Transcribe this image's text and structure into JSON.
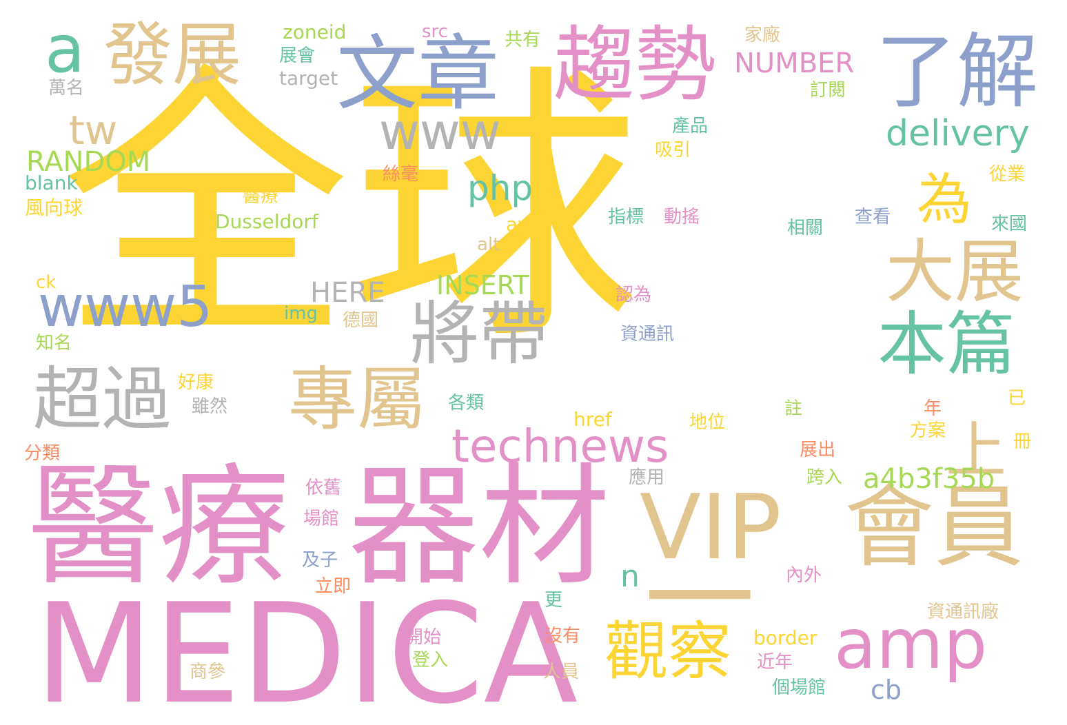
{
  "palette": {
    "yellow": "#fcd535",
    "pink": "#e390c6",
    "tan": "#e2c48e",
    "blue": "#8da0cb",
    "gray": "#b3b3b3",
    "green": "#66c2a5",
    "lime": "#a6d854",
    "orange": "#fc8d62"
  },
  "words": [
    "全球",
    "醫療",
    "器材",
    "MEDICA",
    "VIP",
    "會員",
    "一",
    "文章",
    "趨勢",
    "了解",
    "發展",
    "a",
    "將帶",
    "超過",
    "專屬",
    "大展",
    "本篇",
    "www5",
    "www",
    "觀察",
    "amp",
    "technews",
    "為",
    "上",
    "delivery",
    "php",
    "tw",
    "RANDOM",
    "blank",
    "風向球",
    "zoneid",
    "src",
    "展會",
    "target",
    "萬名",
    "共有",
    "家廠",
    "NUMBER",
    "訂閱",
    "產品",
    "吸引",
    "絲毫",
    "從業",
    "醫療",
    "Dusseldorf",
    "指標",
    "動搖",
    "查看",
    "相關",
    "來國",
    "avw",
    "alt",
    "ck",
    "HERE",
    "INSERT",
    "img",
    "德國",
    "認為",
    "資通訊",
    "知名",
    "好康",
    "雖然",
    "各類",
    "href",
    "地位",
    "註",
    "已",
    "年",
    "方案",
    "冊",
    "分類",
    "展出",
    "a4b3f35b",
    "跨入",
    "應用",
    "依舊",
    "場館",
    "n",
    "及子",
    "立即",
    "內外",
    "更",
    "資通訊廠",
    "開始",
    "沒有",
    "border",
    "登入",
    "近年",
    "商參",
    "人員",
    "cb",
    "個場館"
  ]
}
